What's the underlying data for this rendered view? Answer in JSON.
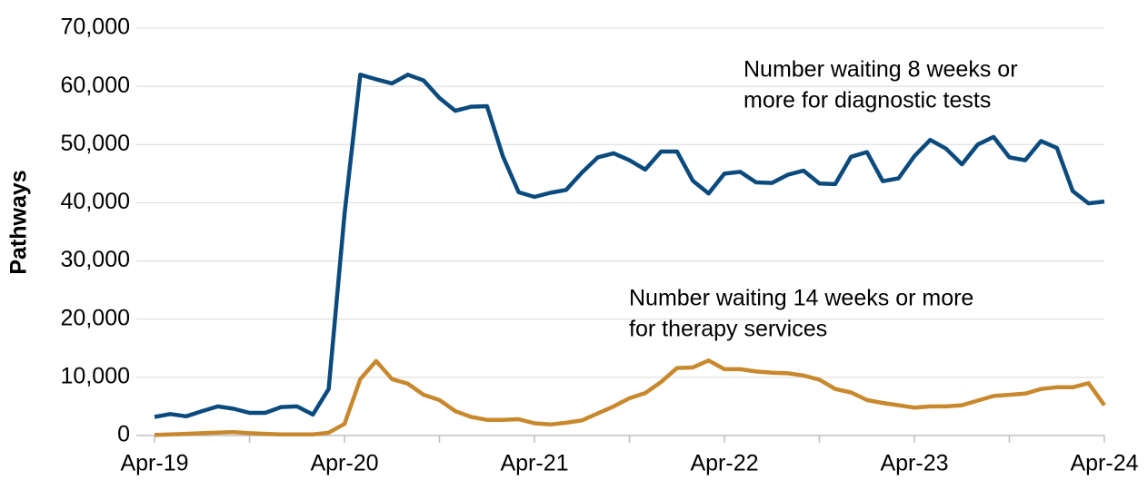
{
  "chart_data": {
    "type": "line",
    "ylabel": "Pathways",
    "categories": [
      "Apr-19",
      null,
      null,
      null,
      null,
      null,
      null,
      null,
      null,
      null,
      null,
      null,
      "Apr-20",
      null,
      null,
      null,
      null,
      null,
      null,
      null,
      null,
      null,
      null,
      null,
      "Apr-21",
      null,
      null,
      null,
      null,
      null,
      null,
      null,
      null,
      null,
      null,
      null,
      "Apr-22",
      null,
      null,
      null,
      null,
      null,
      null,
      null,
      null,
      null,
      null,
      null,
      "Apr-23",
      null,
      null,
      null,
      null,
      null,
      null,
      null,
      null,
      null,
      null,
      null,
      "Apr-24"
    ],
    "series": [
      {
        "name": "Number waiting 8 weeks or more for diagnostic tests",
        "color": "#0b4a7d",
        "label_lines": [
          "Number waiting 8 weeks or",
          "more for diagnostic tests"
        ],
        "values": [
          3200,
          3700,
          3300,
          4200,
          5000,
          4600,
          3900,
          3900,
          4900,
          5000,
          3600,
          8000,
          38000,
          62000,
          61200,
          60500,
          62000,
          61000,
          58000,
          55800,
          56500,
          56600,
          48000,
          41800,
          41000,
          41700,
          42200,
          45200,
          47800,
          48500,
          47300,
          45700,
          48800,
          48800,
          43800,
          41600,
          45000,
          45300,
          43500,
          43400,
          44800,
          45500,
          43300,
          43200,
          47900,
          48700,
          43700,
          44200,
          48000,
          50800,
          49300,
          46600,
          50000,
          51300,
          47800,
          47300,
          50600,
          49400,
          42000,
          39900,
          40200
        ]
      },
      {
        "name": "Number waiting 14 weeks or more for therapy services",
        "color": "#c8892e",
        "label_lines": [
          "Number waiting 14 weeks or more",
          "for therapy services"
        ],
        "values": [
          100,
          200,
          300,
          400,
          500,
          600,
          400,
          300,
          200,
          200,
          200,
          500,
          2000,
          9700,
          12800,
          9700,
          8900,
          7000,
          6100,
          4200,
          3200,
          2700,
          2700,
          2800,
          2100,
          1900,
          2200,
          2600,
          3800,
          5000,
          6400,
          7300,
          9200,
          11600,
          11700,
          12900,
          11400,
          11400,
          11000,
          10800,
          10700,
          10300,
          9600,
          8000,
          7400,
          6100,
          5600,
          5200,
          4800,
          5000,
          5000,
          5200,
          6000,
          6800,
          7000,
          7200,
          8000,
          8300,
          8300,
          9000,
          5200
        ]
      }
    ],
    "ylim": [
      0,
      70000
    ],
    "yticks": [
      0,
      {
        "value": 10000,
        "label": "10,000"
      },
      {
        "value": 20000,
        "label": "20,000"
      },
      {
        "value": 30000,
        "label": "30,000"
      },
      {
        "value": 40000,
        "label": "40,000"
      },
      {
        "value": 50000,
        "label": "50,000"
      },
      {
        "value": 60000,
        "label": "60,000"
      },
      {
        "value": 70000,
        "label": "70,000"
      }
    ],
    "grid": true
  }
}
